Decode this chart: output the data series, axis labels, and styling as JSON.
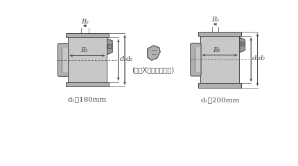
{
  "bg_color": "#ffffff",
  "part_color_main": "#c8c8c8",
  "part_color_dark": "#999999",
  "part_color_mid": "#b0b0b0",
  "part_color_light": "#d8d8d8",
  "part_color_edge": "#888888",
  "line_color": "#444444",
  "dim_color": "#444444",
  "label_left": "d₁≦180mm",
  "label_right": "d₁≧200mm",
  "label_b1": "B₁",
  "label_b2": "B₂",
  "label_b3": "B₃",
  "label_d1": "d₁",
  "label_d2": "d₂",
  "label_center": "(記号Xの付いたもの)",
  "fig_width": 4.3,
  "fig_height": 2.4,
  "dpi": 100
}
